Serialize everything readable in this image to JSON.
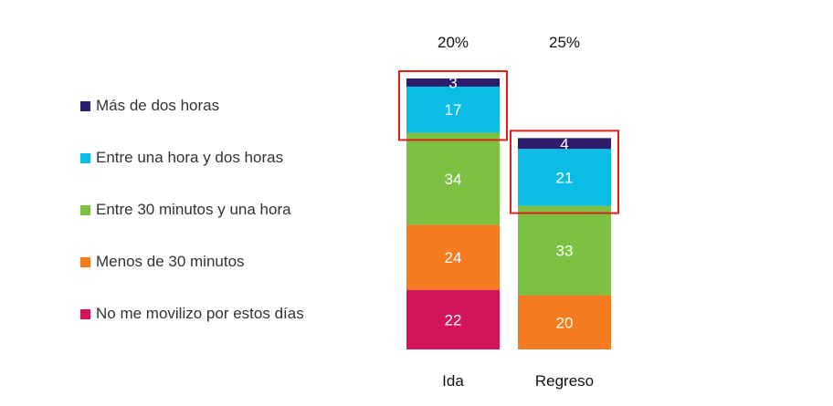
{
  "chart_data": {
    "type": "bar",
    "stacked": true,
    "categories": [
      "Ida",
      "Regreso"
    ],
    "top_labels": [
      "20%",
      "25%"
    ],
    "series": [
      {
        "name": "Más de dos horas",
        "color": "#2d1c6b",
        "values": [
          3,
          4
        ]
      },
      {
        "name": "Entre una hora y dos horas",
        "color": "#0bbde6",
        "values": [
          17,
          21
        ]
      },
      {
        "name": "Entre 30 minutos y una hora",
        "color": "#7cc142",
        "values": [
          34,
          33
        ]
      },
      {
        "name": "Menos de 30 minutos",
        "color": "#f47b20",
        "values": [
          24,
          20
        ]
      },
      {
        "name": "No me movilizo por estos días",
        "color": "#d4145a",
        "values": [
          22,
          null
        ]
      }
    ],
    "highlight_color": "#e0201c",
    "highlighted_series": [
      "Más de dos horas",
      "Entre una hora y dos horas"
    ],
    "legend_position": "left",
    "grid": false
  }
}
